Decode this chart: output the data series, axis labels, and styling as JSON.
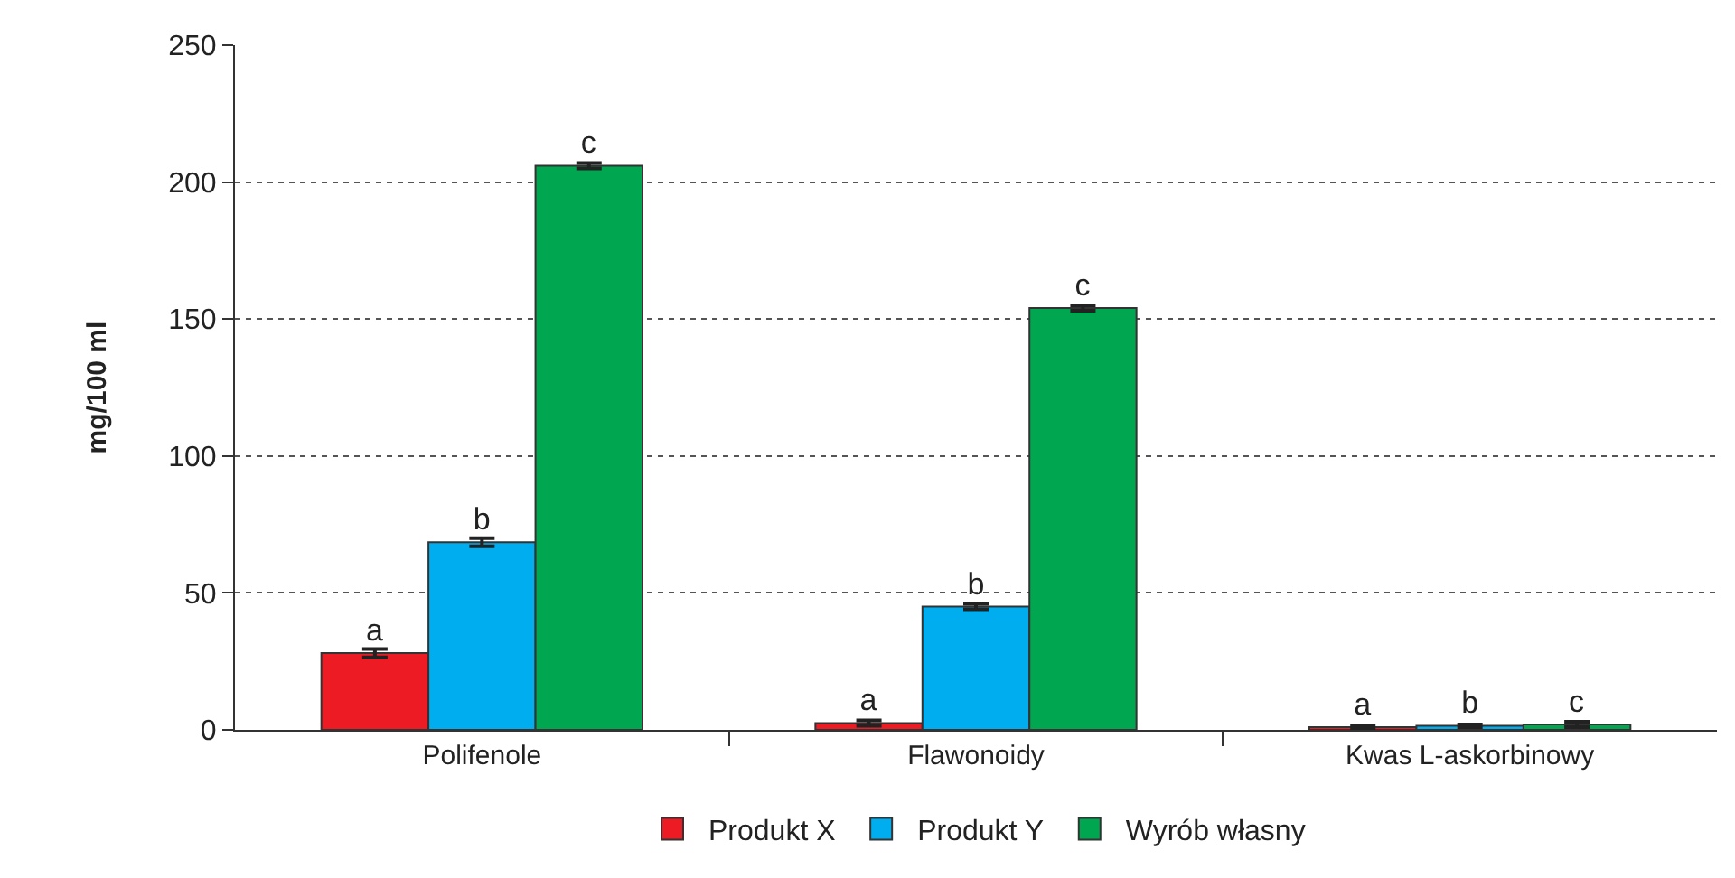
{
  "chart_data": {
    "type": "bar",
    "ylabel": "mg/100 ml",
    "categories": [
      "Polifenole",
      "Flawonoidy",
      "Kwas L-askorbinowy"
    ],
    "series": [
      {
        "name": "Produkt X",
        "color": "#ed1c24",
        "values": [
          28,
          2.5,
          1
        ],
        "errors": [
          1.5,
          1,
          0.5
        ],
        "value_labels": [
          "a",
          "a",
          "a"
        ]
      },
      {
        "name": "Produkt Y",
        "color": "#00aeef",
        "values": [
          68.5,
          45,
          1.5
        ],
        "errors": [
          1.5,
          1,
          0.5
        ],
        "value_labels": [
          "b",
          "b",
          "b"
        ]
      },
      {
        "name": "Wyrób własny",
        "color": "#00a650",
        "values": [
          206,
          154,
          2
        ],
        "errors": [
          1,
          1,
          1
        ],
        "value_labels": [
          "c",
          "c",
          "c"
        ]
      }
    ],
    "ylim": [
      0,
      250
    ],
    "yticks": [
      0,
      50,
      100,
      150,
      200,
      250
    ],
    "grid": "y",
    "legend": "bottom"
  }
}
